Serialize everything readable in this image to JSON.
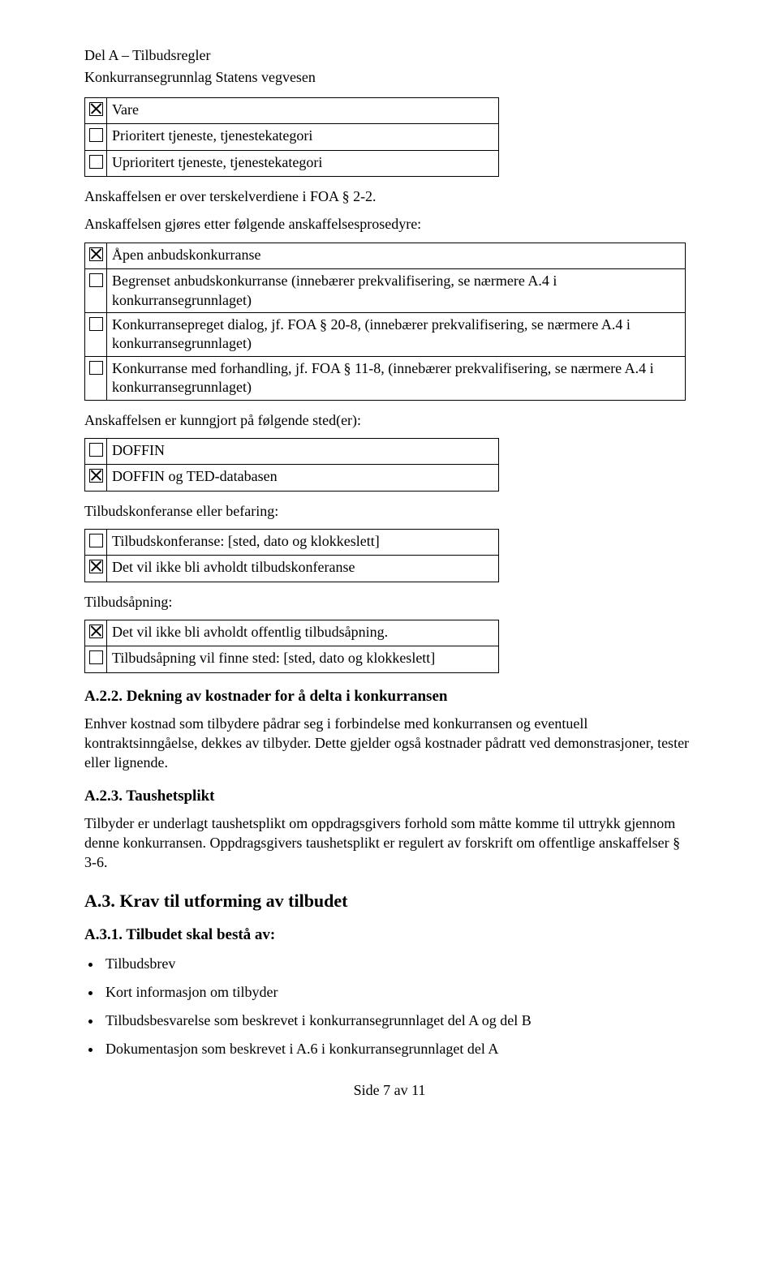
{
  "header": {
    "line1": "Del A – Tilbudsregler",
    "line2": "Konkurransegrunnlag Statens vegvesen"
  },
  "block1": {
    "row1": {
      "checked": true,
      "label": "Vare"
    },
    "row2": {
      "checked": false,
      "label": "Prioritert tjeneste, tjenestekategori"
    },
    "row3": {
      "checked": false,
      "label": "Uprioritert tjeneste, tjenestekategori"
    }
  },
  "para1": "Anskaffelsen er over terskelverdiene i FOA § 2-2.",
  "para2": "Anskaffelsen gjøres etter følgende anskaffelsesprosedyre:",
  "block2": {
    "row1": {
      "checked": true,
      "label": "Åpen anbudskonkurranse"
    },
    "row2": {
      "checked": false,
      "label": "Begrenset anbudskonkurranse (innebærer prekvalifisering, se nærmere A.4 i konkurransegrunnlaget)"
    },
    "row3": {
      "checked": false,
      "label": "Konkurransepreget dialog, jf. FOA § 20-8, (innebærer prekvalifisering, se nærmere A.4 i konkurransegrunnlaget)"
    },
    "row4": {
      "checked": false,
      "label": "Konkurranse med forhandling, jf. FOA § 11-8, (innebærer prekvalifisering, se nærmere A.4 i konkurransegrunnlaget)"
    }
  },
  "para3": "Anskaffelsen er kunngjort på følgende sted(er):",
  "block3": {
    "row1": {
      "checked": false,
      "label": "DOFFIN"
    },
    "row2": {
      "checked": true,
      "label": "DOFFIN og TED-databasen"
    }
  },
  "para4": "Tilbudskonferanse eller befaring:",
  "block4": {
    "row1": {
      "checked": false,
      "label": "Tilbudskonferanse: [sted, dato og klokkeslett]"
    },
    "row2": {
      "checked": true,
      "label": "Det vil ikke bli avholdt tilbudskonferanse"
    }
  },
  "para5": "Tilbudsåpning:",
  "block5": {
    "row1": {
      "checked": true,
      "label": "Det vil ikke bli avholdt offentlig tilbudsåpning."
    },
    "row2": {
      "checked": false,
      "label": "Tilbudsåpning vil finne sted: [sted, dato og klokkeslett]"
    }
  },
  "a22_title": "A.2.2. Dekning av kostnader for å delta i konkurransen",
  "a22_body": "Enhver kostnad som tilbydere pådrar seg i forbindelse med konkurransen og eventuell kontraktsinngåelse, dekkes av tilbyder. Dette gjelder også kostnader pådratt ved demonstrasjoner, tester eller lignende.",
  "a23_title": "A.2.3. Taushetsplikt",
  "a23_body": "Tilbyder er underlagt taushetsplikt om oppdragsgivers forhold som måtte komme til uttrykk gjennom denne konkurransen. Oppdragsgivers taushetsplikt er regulert av forskrift om offentlige anskaffelser § 3-6.",
  "a3_title": "A.3.   Krav til utforming av tilbudet",
  "a31_title": "A.3.1. Tilbudet skal bestå av:",
  "bullets": {
    "b1": "Tilbudsbrev",
    "b2": "Kort informasjon om tilbyder",
    "b3": "Tilbudsbesvarelse som beskrevet i konkurransegrunnlaget del A og del B",
    "b4": "Dokumentasjon som beskrevet i A.6 i konkurransegrunnlaget del A"
  },
  "footer": "Side 7 av 11"
}
